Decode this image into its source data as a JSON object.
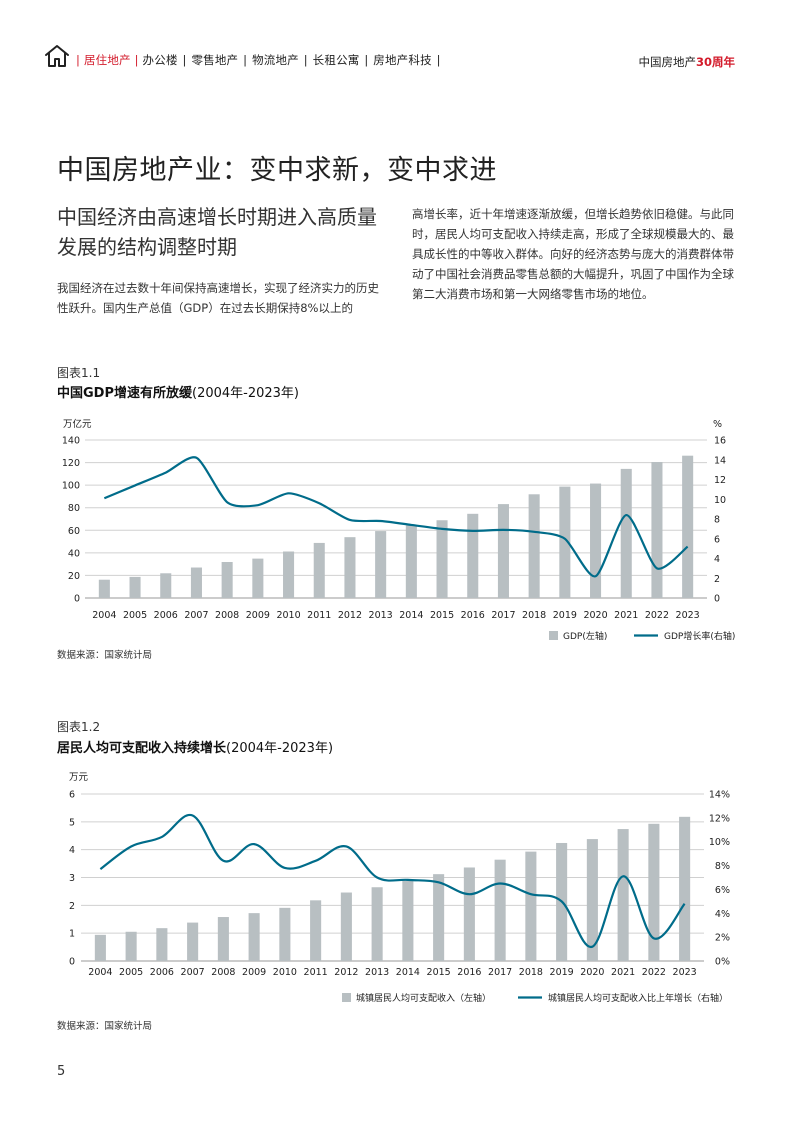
{
  "header": {
    "nav_items": [
      {
        "label": "居住地产",
        "active": true
      },
      {
        "label": "办公楼",
        "active": false
      },
      {
        "label": "零售地产",
        "active": false
      },
      {
        "label": "物流地产",
        "active": false
      },
      {
        "label": "长租公寓",
        "active": false
      },
      {
        "label": "房地产科技",
        "active": false
      }
    ],
    "brand_prefix": "中国房地产",
    "brand_highlight": "30周年",
    "home_icon": "home-icon"
  },
  "title": "中国房地产业：变中求新，变中求进",
  "subtitle": "中国经济由高速增长时期进入高质量发展的结构调整时期",
  "para_left": "我国经济在过去数十年间保持高速增长，实现了经济实力的历史性跃升。国内生产总值（GDP）在过去长期保持8%以上的",
  "para_right": "高增长率，近十年增速逐渐放缓，但增长趋势依旧稳健。与此同时，居民人均可支配收入持续走高，形成了全球规模最大的、最具成长性的中等收入群体。向好的经济态势与庞大的消费群体带动了中国社会消费品零售总额的大幅提升，巩固了中国作为全球第二大消费市场和第一大网络零售市场的地位。",
  "colors": {
    "accent": "#d31b2b",
    "bar": "#b8bfc2",
    "line": "#006c8a",
    "grid": "#d0d0d0"
  },
  "page_number": "5",
  "chart_data": [
    {
      "type": "bar",
      "fig_no": "图表1.1",
      "title_bold": "中国GDP增速有所放缓",
      "title_range": "(2004年-2023年)",
      "source": "数据来源：国家统计局",
      "categories": [
        "2004",
        "2005",
        "2006",
        "2007",
        "2008",
        "2009",
        "2010",
        "2011",
        "2012",
        "2013",
        "2014",
        "2015",
        "2016",
        "2017",
        "2018",
        "2019",
        "2020",
        "2021",
        "2022",
        "2023"
      ],
      "series": [
        {
          "name": "GDP(左轴)",
          "kind": "bar",
          "axis": "left",
          "values": [
            16.2,
            18.7,
            21.9,
            27.0,
            31.9,
            34.9,
            41.2,
            48.8,
            53.9,
            59.3,
            64.4,
            68.9,
            74.6,
            83.2,
            91.9,
            98.7,
            101.4,
            114.4,
            120.5,
            126.1
          ]
        },
        {
          "name": "GDP增长率(右轴)",
          "kind": "line",
          "axis": "right",
          "values": [
            10.1,
            11.4,
            12.7,
            14.2,
            9.7,
            9.4,
            10.6,
            9.6,
            7.9,
            7.8,
            7.4,
            7.0,
            6.8,
            6.9,
            6.7,
            6.0,
            2.2,
            8.4,
            3.0,
            5.2
          ]
        }
      ],
      "left_unit": "万亿元",
      "right_unit": "%",
      "left_ticks": [
        "0",
        "20",
        "40",
        "60",
        "80",
        "100",
        "120",
        "140"
      ],
      "right_ticks": [
        "0",
        "2",
        "4",
        "6",
        "8",
        "10",
        "12",
        "14",
        "16"
      ],
      "ylim_left": [
        0,
        140
      ],
      "ylim_right": [
        0,
        16
      ],
      "grid": true,
      "legend": "bottom-right"
    },
    {
      "type": "bar",
      "fig_no": "图表1.2",
      "title_bold": "居民人均可支配收入持续增长",
      "title_range": "(2004年-2023年)",
      "source": "数据来源：国家统计局",
      "categories": [
        "2004",
        "2005",
        "2006",
        "2007",
        "2008",
        "2009",
        "2010",
        "2011",
        "2012",
        "2013",
        "2014",
        "2015",
        "2016",
        "2017",
        "2018",
        "2019",
        "2020",
        "2021",
        "2022",
        "2023"
      ],
      "series": [
        {
          "name": "城镇居民人均可支配收入（左轴）",
          "kind": "bar",
          "axis": "left",
          "values": [
            0.94,
            1.05,
            1.18,
            1.38,
            1.58,
            1.72,
            1.91,
            2.18,
            2.46,
            2.65,
            2.88,
            3.12,
            3.36,
            3.64,
            3.93,
            4.24,
            4.38,
            4.74,
            4.93,
            5.18
          ]
        },
        {
          "name": "城镇居民人均可支配收入比上年增长（右轴）",
          "kind": "line",
          "axis": "right",
          "values": [
            7.7,
            9.6,
            10.4,
            12.2,
            8.4,
            9.8,
            7.8,
            8.4,
            9.6,
            7.0,
            6.8,
            6.6,
            5.6,
            6.5,
            5.6,
            5.0,
            1.2,
            7.1,
            1.9,
            4.8
          ]
        }
      ],
      "left_unit": "万元",
      "left_ticks": [
        "0",
        "1",
        "2",
        "3",
        "4",
        "5",
        "6"
      ],
      "right_ticks": [
        "0%",
        "2%",
        "4%",
        "6%",
        "8%",
        "10%",
        "12%",
        "14%"
      ],
      "ylim_left": [
        0,
        6
      ],
      "ylim_right": [
        0,
        14
      ],
      "grid": true,
      "legend": "bottom-right"
    }
  ]
}
